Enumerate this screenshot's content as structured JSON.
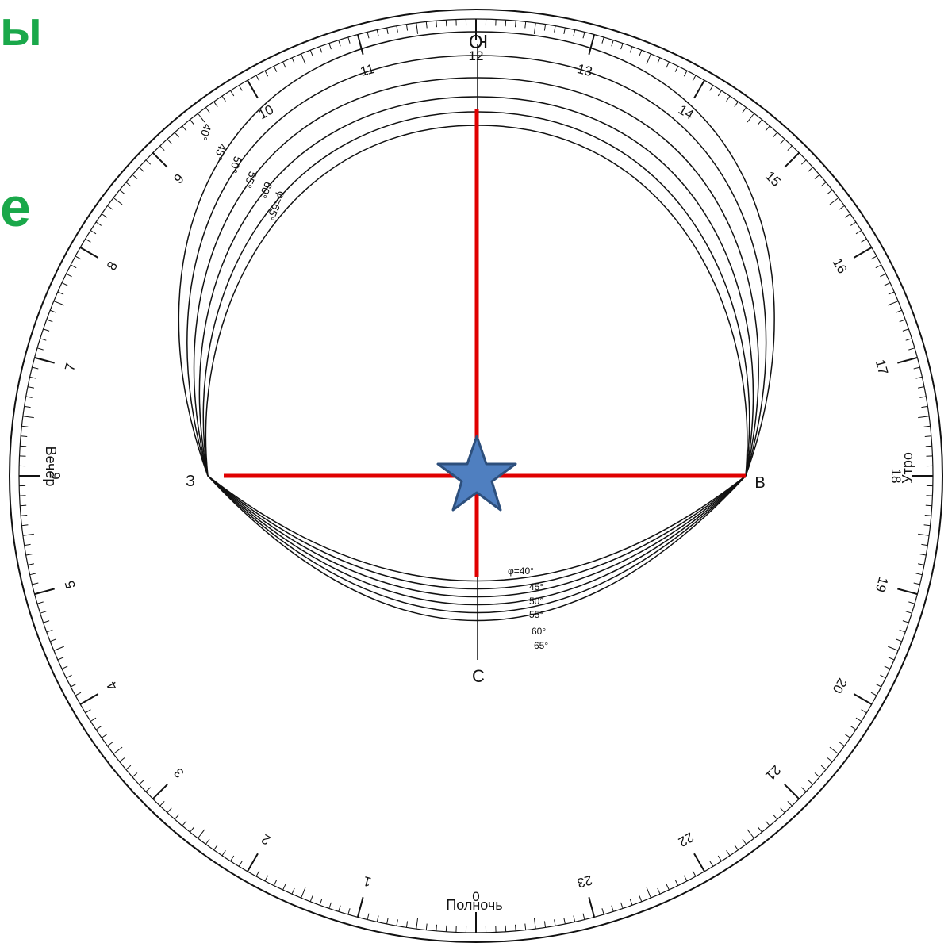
{
  "header_fragments": [
    "ы",
    "е"
  ],
  "colors": {
    "fragment": "#1aa84a",
    "axes": "#e00000",
    "star": "#4f7fc0",
    "ink": "#111111"
  },
  "dial": {
    "hour_labels": [
      "0",
      "1",
      "2",
      "3",
      "4",
      "5",
      "6",
      "7",
      "8",
      "9",
      "10",
      "11",
      "12",
      "13",
      "14",
      "15",
      "16",
      "17",
      "18",
      "19",
      "20",
      "21",
      "22",
      "23"
    ],
    "evening_label": "Вечер",
    "morning_label": "Утро",
    "midnight_label": "Полночь"
  },
  "cardinal": {
    "south": "Ю",
    "north": "С",
    "east": "В",
    "west": "З"
  },
  "upper_latitudes": [
    "40°",
    "45°",
    "50°",
    "55°",
    "60°",
    "φ=65°"
  ],
  "lower_latitudes": [
    "φ=40°",
    "45°",
    "50°",
    "55°",
    "60°",
    "65°"
  ],
  "star_icon": "star-icon"
}
